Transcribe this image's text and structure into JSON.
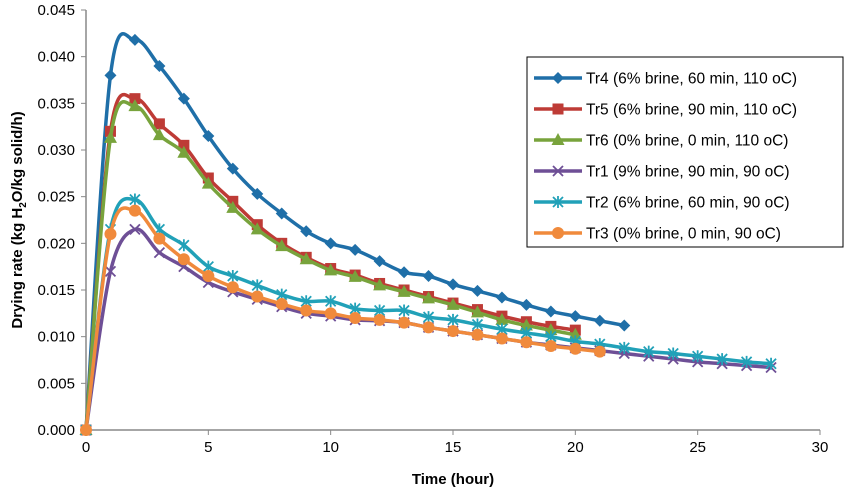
{
  "chart_data": {
    "type": "line",
    "title": "",
    "xlabel": "Time (hour)",
    "ylabel_parts": [
      "Drying rate (kg H",
      "2",
      "O/kg solid/h)"
    ],
    "xlim": [
      0,
      30
    ],
    "ylim": [
      0,
      0.045
    ],
    "xticks": [
      "0",
      "5",
      "10",
      "15",
      "20",
      "25",
      "30"
    ],
    "yticks": [
      "0.000",
      "0.005",
      "0.010",
      "0.015",
      "0.020",
      "0.025",
      "0.030",
      "0.035",
      "0.040",
      "0.045"
    ],
    "grid": false,
    "legend_position": "top-right",
    "series": [
      {
        "name": "Tr4  (6% brine, 60 min, 110 oC)",
        "color": "#1f6fa8",
        "marker": "diamond",
        "values": [
          0,
          0.038,
          0.0418,
          0.039,
          0.0355,
          0.0315,
          0.028,
          0.0253,
          0.0232,
          0.0213,
          0.02,
          0.0193,
          0.0181,
          0.0169,
          0.0165,
          0.0156,
          0.0149,
          0.0142,
          0.0134,
          0.0127,
          0.0122,
          0.0117,
          0.0112
        ]
      },
      {
        "name": "Tr5  (6% brine, 90 min, 110 oC)",
        "color": "#be3b36",
        "marker": "square",
        "values": [
          0,
          0.032,
          0.0355,
          0.0328,
          0.0305,
          0.027,
          0.0245,
          0.022,
          0.02,
          0.0185,
          0.0173,
          0.0166,
          0.0157,
          0.015,
          0.0143,
          0.0136,
          0.0129,
          0.0122,
          0.0116,
          0.0111,
          0.0107
        ]
      },
      {
        "name": "Tr6  (0% brine, 0 min, 110 oC)",
        "color": "#78a33c",
        "marker": "triangle",
        "values": [
          0,
          0.0313,
          0.0347,
          0.0316,
          0.0297,
          0.0264,
          0.0238,
          0.0215,
          0.0197,
          0.0183,
          0.0171,
          0.0164,
          0.0155,
          0.0148,
          0.0141,
          0.0134,
          0.0126,
          0.0118,
          0.0112,
          0.0107,
          0.0102
        ]
      },
      {
        "name": "Tr1 (9% brine, 90 min, 90 oC)",
        "color": "#6e4f96",
        "marker": "x",
        "values": [
          0,
          0.017,
          0.0215,
          0.019,
          0.0175,
          0.0158,
          0.0148,
          0.014,
          0.0132,
          0.0125,
          0.0122,
          0.0118,
          0.0117,
          0.0115,
          0.011,
          0.0106,
          0.0102,
          0.0098,
          0.0094,
          0.0091,
          0.0088,
          0.0085,
          0.0082,
          0.0079,
          0.0076,
          0.0073,
          0.0071,
          0.0069,
          0.0067
        ]
      },
      {
        "name": "Tr2  (6% brine, 60 min, 90 oC)",
        "color": "#21a1b8",
        "marker": "asterisk",
        "values": [
          0,
          0.0215,
          0.0247,
          0.0215,
          0.0198,
          0.0175,
          0.0165,
          0.0155,
          0.0145,
          0.0138,
          0.0138,
          0.013,
          0.0128,
          0.0128,
          0.0121,
          0.0118,
          0.0113,
          0.0108,
          0.0104,
          0.01,
          0.0095,
          0.0092,
          0.0088,
          0.0084,
          0.0082,
          0.0079,
          0.0076,
          0.0073,
          0.0071
        ]
      },
      {
        "name": "Tr3  (0% brine, 0 min, 90 oC)",
        "color": "#f08a3c",
        "marker": "circle",
        "values": [
          0,
          0.021,
          0.0235,
          0.0205,
          0.0183,
          0.0165,
          0.0153,
          0.0143,
          0.0135,
          0.0128,
          0.0125,
          0.012,
          0.0118,
          0.0115,
          0.011,
          0.0106,
          0.0102,
          0.0098,
          0.0094,
          0.009,
          0.0087,
          0.0084
        ]
      }
    ]
  }
}
